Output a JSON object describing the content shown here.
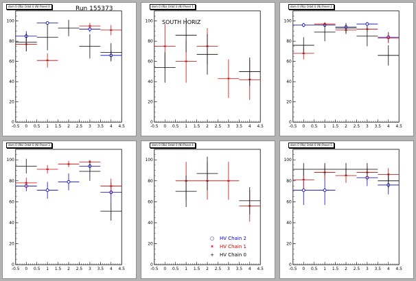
{
  "chart_data": [
    {
      "type": "scatter",
      "pad_title": "dom 0 (Rb) Orbit 0 (N) Panel 0",
      "run_label": "Run 155373",
      "xlim": [
        -0.5,
        4.5
      ],
      "ylim": [
        0,
        110
      ],
      "x_ticks": [
        "-0.5",
        "0",
        "0.5",
        "1",
        "1.5",
        "2",
        "2.5",
        "3",
        "3.5",
        "4",
        "4.5"
      ],
      "y_ticks": [
        "0",
        "20",
        "40",
        "60",
        "80",
        "100"
      ],
      "series": [
        {
          "color": "#0000cc",
          "marker": "circle",
          "points": [
            {
              "x": 0,
              "y": 85,
              "yerr": 5
            },
            {
              "x": 1,
              "y": 98,
              "yerr": 1
            },
            {
              "x": 3,
              "y": 92,
              "yerr": 3
            },
            {
              "x": 4,
              "y": 66,
              "yerr": 5
            }
          ]
        },
        {
          "color": "#cc0000",
          "marker": "star",
          "points": [
            {
              "x": 0,
              "y": 77,
              "yerr": 7
            },
            {
              "x": 1,
              "y": 61,
              "yerr": 7
            },
            {
              "x": 3,
              "y": 95,
              "yerr": 3
            },
            {
              "x": 4,
              "y": 91,
              "yerr": 5
            }
          ]
        },
        {
          "color": "#000000",
          "marker": "plus",
          "points": [
            {
              "x": 0,
              "y": 79,
              "yerr": 9
            },
            {
              "x": 1,
              "y": 84,
              "yerr": 13
            },
            {
              "x": 2,
              "y": 93,
              "yerr": 8
            },
            {
              "x": 3,
              "y": 75,
              "yerr": 12
            },
            {
              "x": 4,
              "y": 69,
              "yerr": 9
            }
          ]
        }
      ]
    },
    {
      "type": "scatter",
      "pad_title": "dom 0 (Rb) Orbit 0 (N) Panel 1",
      "subtitle": "SOUTH HORIZ",
      "xlim": [
        -0.5,
        4.5
      ],
      "ylim": [
        0,
        110
      ],
      "x_ticks": [
        "-0.5",
        "0",
        "0.5",
        "1",
        "1.5",
        "2",
        "2.5",
        "3",
        "3.5",
        "4",
        "4.5"
      ],
      "y_ticks": [
        "0",
        "20",
        "40",
        "60",
        "80",
        "100"
      ],
      "series": [
        {
          "color": "#cc0000",
          "marker": "star",
          "points": [
            {
              "x": 0,
              "y": 75,
              "yerr": 22
            },
            {
              "x": 1,
              "y": 60,
              "yerr": 21
            },
            {
              "x": 2,
              "y": 75,
              "yerr": 18
            },
            {
              "x": 3,
              "y": 43,
              "yerr": 19
            },
            {
              "x": 4,
              "y": 42,
              "yerr": 20
            }
          ]
        },
        {
          "color": "#000000",
          "marker": "plus",
          "points": [
            {
              "x": 0,
              "y": 54,
              "yerr": 15
            },
            {
              "x": 1,
              "y": 86,
              "yerr": 17
            },
            {
              "x": 2,
              "y": 67,
              "yerr": 20
            },
            {
              "x": 4,
              "y": 50,
              "yerr": 14
            }
          ]
        }
      ]
    },
    {
      "type": "scatter",
      "pad_title": "dom 0 (Rb) Orbit 0 (N) Panel 2",
      "xlim": [
        -0.5,
        4.5
      ],
      "ylim": [
        0,
        110
      ],
      "x_ticks": [
        "-0.5",
        "0",
        "0.5",
        "1",
        "1.5",
        "2",
        "2.5",
        "3",
        "3.5",
        "4",
        "4.5"
      ],
      "y_ticks": [
        "0",
        "20",
        "40",
        "60",
        "80",
        "100"
      ],
      "series": [
        {
          "color": "#0000cc",
          "marker": "circle",
          "points": [
            {
              "x": 0,
              "y": 96,
              "yerr": 2
            },
            {
              "x": 1,
              "y": 96,
              "yerr": 2
            },
            {
              "x": 2,
              "y": 94,
              "yerr": 3
            },
            {
              "x": 3,
              "y": 97,
              "yerr": 2
            },
            {
              "x": 4,
              "y": 84,
              "yerr": 5
            }
          ]
        },
        {
          "color": "#cc0000",
          "marker": "star",
          "points": [
            {
              "x": 0,
              "y": 68,
              "yerr": 6
            },
            {
              "x": 1,
              "y": 97,
              "yerr": 2
            },
            {
              "x": 2,
              "y": 91,
              "yerr": 4
            },
            {
              "x": 3,
              "y": 92,
              "yerr": 3
            },
            {
              "x": 4,
              "y": 83,
              "yerr": 5
            }
          ]
        },
        {
          "color": "#000000",
          "marker": "plus",
          "points": [
            {
              "x": 0,
              "y": 76,
              "yerr": 8
            },
            {
              "x": 1,
              "y": 89,
              "yerr": 9
            },
            {
              "x": 2,
              "y": 93,
              "yerr": 5
            },
            {
              "x": 3,
              "y": 85,
              "yerr": 10
            },
            {
              "x": 4,
              "y": 66,
              "yerr": 10
            }
          ]
        }
      ]
    },
    {
      "type": "scatter",
      "pad_title": "dom 0 (Rb) Orbit 0 (N) Panel 3",
      "xlim": [
        -0.5,
        4.5
      ],
      "ylim": [
        0,
        110
      ],
      "x_ticks": [
        "-0.5",
        "0",
        "0.5",
        "1",
        "1.5",
        "2",
        "2.5",
        "3",
        "3.5",
        "4",
        "4.5"
      ],
      "y_ticks": [
        "0",
        "20",
        "40",
        "60",
        "80",
        "100"
      ],
      "series": [
        {
          "color": "#0000cc",
          "marker": "circle",
          "points": [
            {
              "x": 0,
              "y": 75,
              "yerr": 5
            },
            {
              "x": 1,
              "y": 71,
              "yerr": 8
            },
            {
              "x": 2,
              "y": 79,
              "yerr": 8
            },
            {
              "x": 3,
              "y": 94,
              "yerr": 5
            },
            {
              "x": 4,
              "y": 69,
              "yerr": 9
            }
          ]
        },
        {
          "color": "#cc0000",
          "marker": "star",
          "points": [
            {
              "x": 0,
              "y": 78,
              "yerr": 5
            },
            {
              "x": 1,
              "y": 91,
              "yerr": 4
            },
            {
              "x": 2,
              "y": 96,
              "yerr": 3
            },
            {
              "x": 3,
              "y": 98,
              "yerr": 2
            },
            {
              "x": 4,
              "y": 75,
              "yerr": 7
            }
          ]
        },
        {
          "color": "#000000",
          "marker": "plus",
          "points": [
            {
              "x": 0,
              "y": 94,
              "yerr": 7
            },
            {
              "x": 3,
              "y": 89,
              "yerr": 9
            },
            {
              "x": 4,
              "y": 51,
              "yerr": 9
            }
          ]
        }
      ]
    },
    {
      "type": "scatter",
      "pad_title": "dom 0 (Rb) Orbit 0 (N) Panel 4",
      "xlim": [
        -0.5,
        4.5
      ],
      "ylim": [
        0,
        110
      ],
      "x_ticks": [
        "-0.5",
        "0",
        "0.5",
        "1",
        "1.5",
        "2",
        "2.5",
        "3",
        "3.5",
        "4",
        "4.5"
      ],
      "y_ticks": [
        "0",
        "20",
        "40",
        "60",
        "80",
        "100"
      ],
      "legend": [
        {
          "label": "HV Chain 2",
          "color": "#0000cc",
          "symbol": "○"
        },
        {
          "label": "HV Chain 1",
          "color": "#cc0000",
          "symbol": "✶"
        },
        {
          "label": "HV Chain 0",
          "color": "#000000",
          "symbol": "+"
        }
      ],
      "series": [
        {
          "color": "#cc0000",
          "marker": "star",
          "points": [
            {
              "x": 1,
              "y": 80,
              "yerr": 18
            },
            {
              "x": 2,
              "y": 80,
              "yerr": 18
            },
            {
              "x": 3,
              "y": 80,
              "yerr": 18
            },
            {
              "x": 4,
              "y": 56,
              "yerr": 15
            }
          ]
        },
        {
          "color": "#000000",
          "marker": "plus",
          "points": [
            {
              "x": 1,
              "y": 70,
              "yerr": 15
            },
            {
              "x": 2,
              "y": 87,
              "yerr": 16
            },
            {
              "x": 4,
              "y": 61,
              "yerr": 13
            }
          ]
        }
      ]
    },
    {
      "type": "scatter",
      "pad_title": "dom 0 (Rb) Orbit 0 (N) Panel 5",
      "xlim": [
        -0.5,
        4.5
      ],
      "ylim": [
        0,
        110
      ],
      "x_ticks": [
        "-0.5",
        "0",
        "0.5",
        "1",
        "1.5",
        "2",
        "2.5",
        "3",
        "3.5",
        "4",
        "4.5"
      ],
      "y_ticks": [
        "0",
        "20",
        "40",
        "60",
        "80",
        "100"
      ],
      "series": [
        {
          "color": "#0000cc",
          "marker": "circle",
          "points": [
            {
              "x": 0,
              "y": 71,
              "yerr": 14
            },
            {
              "x": 1,
              "y": 71,
              "yerr": 14
            },
            {
              "x": 3,
              "y": 83,
              "yerr": 8
            },
            {
              "x": 4,
              "y": 76,
              "yerr": 9
            }
          ]
        },
        {
          "color": "#cc0000",
          "marker": "star",
          "points": [
            {
              "x": 0,
              "y": 81,
              "yerr": 9
            },
            {
              "x": 1,
              "y": 88,
              "yerr": 7
            },
            {
              "x": 2,
              "y": 85,
              "yerr": 7
            },
            {
              "x": 3,
              "y": 88,
              "yerr": 6
            },
            {
              "x": 4,
              "y": 86,
              "yerr": 6
            }
          ]
        },
        {
          "color": "#000000",
          "marker": "plus",
          "points": [
            {
              "x": 0,
              "y": 91,
              "yerr": 6
            },
            {
              "x": 1,
              "y": 91,
              "yerr": 6
            },
            {
              "x": 2,
              "y": 91,
              "yerr": 6
            },
            {
              "x": 3,
              "y": 91,
              "yerr": 6
            },
            {
              "x": 4,
              "y": 80,
              "yerr": 7
            }
          ]
        }
      ]
    }
  ]
}
